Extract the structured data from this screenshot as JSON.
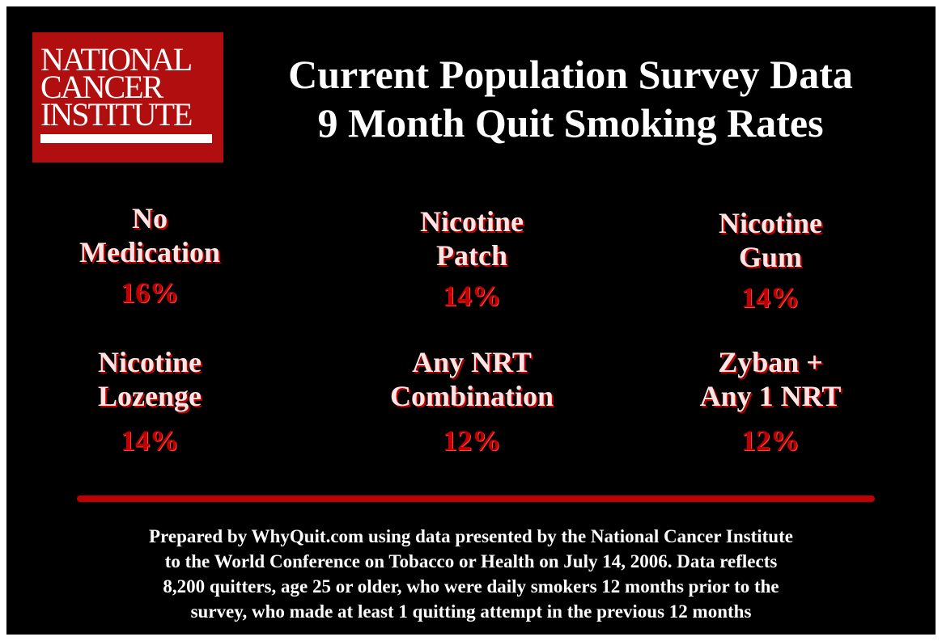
{
  "logo": {
    "lines": [
      "NATIONAL",
      "CANCER",
      "INSTITUTE"
    ]
  },
  "title": {
    "lines": [
      "Current Population Survey Data",
      "9 Month Quit Smoking Rates"
    ]
  },
  "items": [
    {
      "label": [
        "No",
        "Medication"
      ],
      "value": "16%"
    },
    {
      "label": [
        "Nicotine",
        "Patch"
      ],
      "value": "14%"
    },
    {
      "label": [
        "Nicotine",
        "Gum"
      ],
      "value": "14%"
    },
    {
      "label": [
        "Nicotine",
        "Lozenge"
      ],
      "value": "14%"
    },
    {
      "label": [
        "Any NRT",
        "Combination"
      ],
      "value": "12%"
    },
    {
      "label": [
        "Zyban +",
        "Any 1 NRT"
      ],
      "value": "12%"
    }
  ],
  "footer": {
    "lines": [
      "Prepared by WhyQuit.com using data presented by the National Cancer Institute",
      "to the World Conference on Tobacco or Health on July 14, 2006. Data reflects",
      "8,200 quitters, age 25 or older, who were daily smokers 12 months prior to the",
      "survey, who made at least 1 quitting attempt in the previous 12 months"
    ]
  }
}
